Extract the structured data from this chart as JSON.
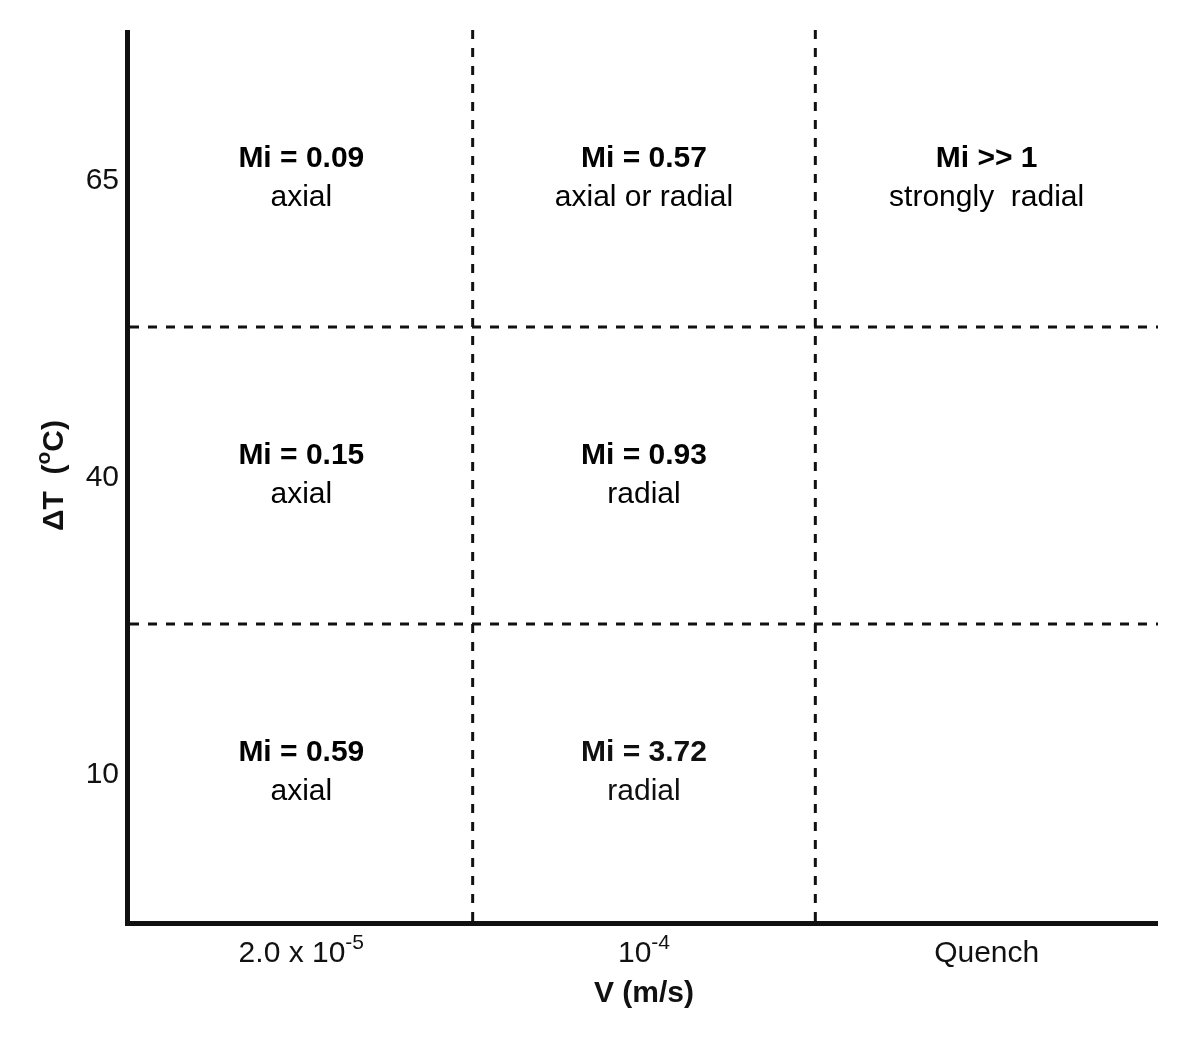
{
  "chart_data": {
    "type": "heatmap",
    "categories": [
      "2.0 x 10$^{-5}$",
      "10$^{-4}$",
      "Quench"
    ],
    "y_categories": [
      "65",
      "40",
      "10"
    ],
    "xlabel": "V (m/s)",
    "ylabel": "ΔT  ($^{o}$C)",
    "cells": [
      [
        0.09,
        0.57,
        null
      ],
      [
        0.15,
        0.93,
        null
      ],
      [
        0.59,
        3.72,
        null
      ]
    ],
    "cell_labels": [
      [
        "Mi = 0.09\naxial",
        "Mi = 0.57\naxial or radial",
        "Mi >> 1\nstrongly  radial"
      ],
      [
        "Mi = 0.15\naxial",
        "Mi = 0.93\nradial",
        null
      ],
      [
        "Mi = 0.59\naxial",
        "Mi = 3.72\nradial",
        null
      ]
    ],
    "grid": true,
    "line_style": "dashed"
  }
}
